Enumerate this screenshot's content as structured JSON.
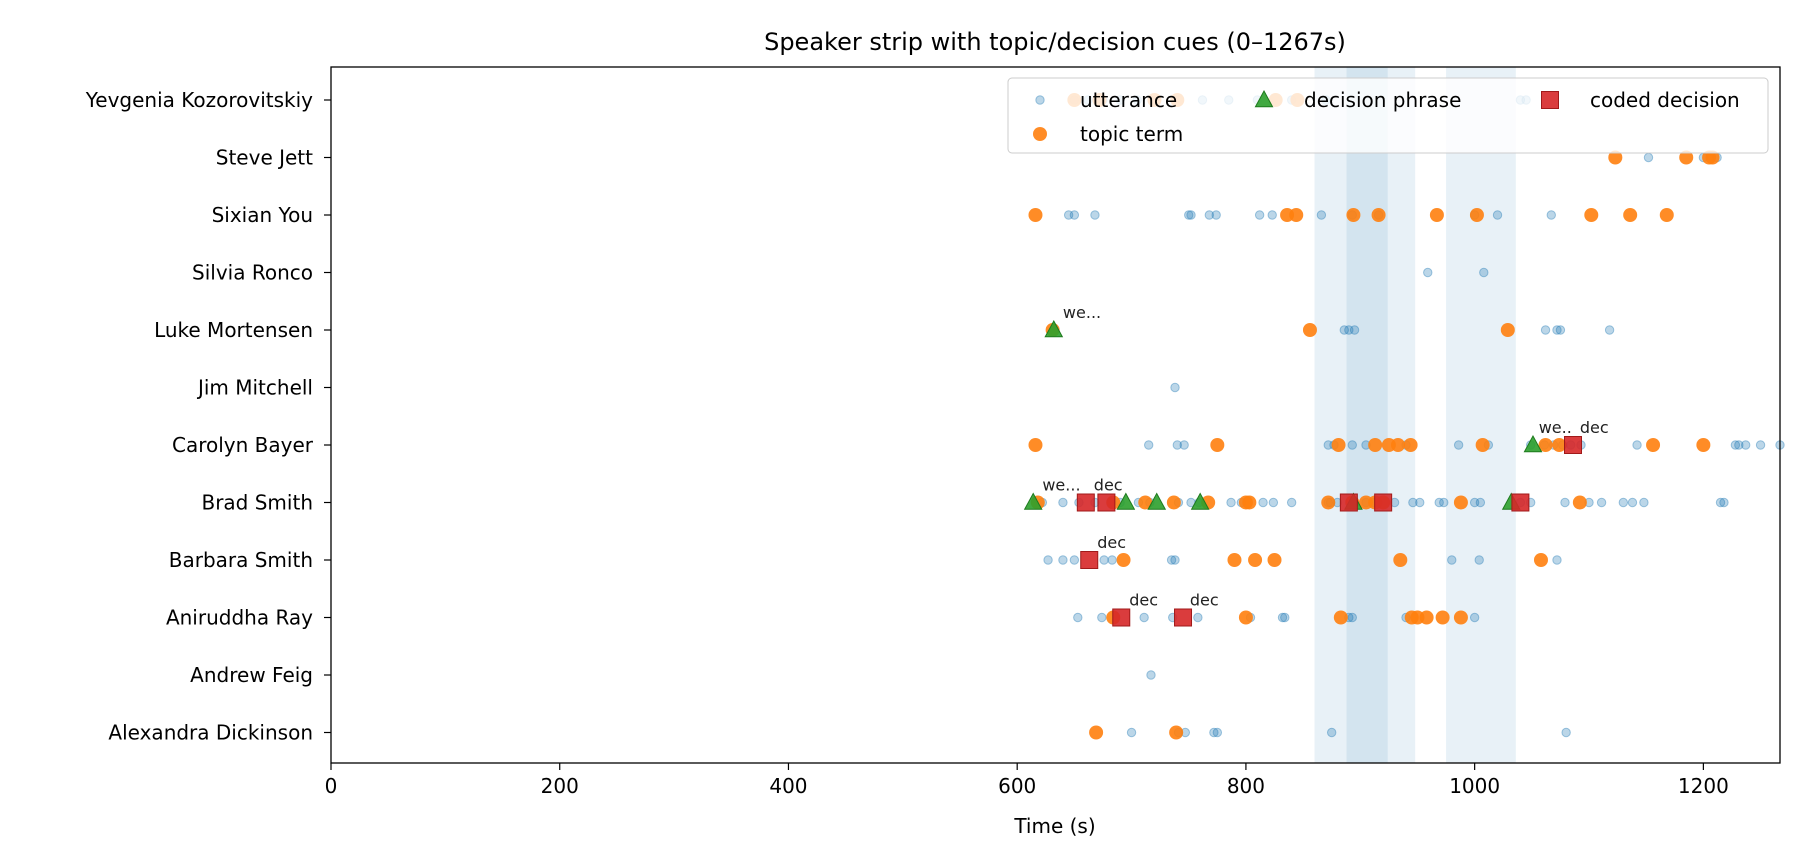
{
  "chart_data": {
    "type": "scatter",
    "title": "Speaker strip with topic/decision cues (0–1267s)",
    "xlabel": "Time (s)",
    "ylabel": "",
    "xlim": [
      0,
      1267
    ],
    "xticks": [
      0,
      200,
      400,
      600,
      800,
      1000,
      1200
    ],
    "grid": false,
    "legend_position": "top-right",
    "speakers": [
      "Yevgenia Kozorovitskiy",
      "Steve Jett",
      "Sixian You",
      "Silvia Ronco",
      "Luke Mortensen",
      "Jim Mitchell",
      "Carolyn Bayer",
      "Brad Smith",
      "Barbara Smith",
      "Aniruddha Ray",
      "Andrew Feig",
      "Alexandra Dickinson"
    ],
    "shaded_regions": [
      {
        "start": 860,
        "end": 948
      },
      {
        "start": 888,
        "end": 924
      },
      {
        "start": 975,
        "end": 1036
      }
    ],
    "colors": {
      "utterance": "#1f77b4",
      "topic": "#ff7f0e",
      "decision_phrase": "#2ca02c",
      "coded_decision": "#d62728",
      "shade": "#1f77b4"
    },
    "series": [
      {
        "name": "utterance",
        "marker": "circle-small",
        "points": [
          {
            "speaker": "Yevgenia Kozorovitskiy",
            "x": [
              650,
              662,
              675,
              690,
              705,
              720,
              738,
              762,
              785,
              810,
              840,
              870,
              1040,
              1045
            ]
          },
          {
            "speaker": "Steve Jett",
            "x": [
              1152,
              1200,
              1212
            ]
          },
          {
            "speaker": "Sixian You",
            "x": [
              645,
              650,
              668,
              750,
              752,
              768,
              774,
              812,
              823,
              866,
              893,
              916,
              1000,
              1020,
              1067
            ]
          },
          {
            "speaker": "Silvia Ronco",
            "x": [
              959,
              1008
            ]
          },
          {
            "speaker": "Luke Mortensen",
            "x": [
              886,
              890,
              895,
              1062,
              1072,
              1075,
              1118
            ]
          },
          {
            "speaker": "Jim Mitchell",
            "x": [
              738
            ]
          },
          {
            "speaker": "Carolyn Bayer",
            "x": [
              715,
              740,
              746,
              872,
              877,
              893,
              905,
              940,
              986,
              1012,
              1049,
              1061,
              1069,
              1077,
              1084,
              1093,
              1142,
              1228,
              1231,
              1237,
              1250,
              1267
            ]
          },
          {
            "speaker": "Brad Smith",
            "x": [
              622,
              640,
              654,
              668,
              690,
              706,
              716,
              741,
              752,
              759,
              787,
              796,
              815,
              824,
              840,
              872,
              874,
              880,
              895,
              905,
              912,
              930,
              946,
              952,
              969,
              973,
              1000,
              1005,
              1040,
              1049,
              1079,
              1100,
              1111,
              1130,
              1138,
              1148,
              1215,
              1218
            ]
          },
          {
            "speaker": "Barbara Smith",
            "x": [
              627,
              640,
              650,
              676,
              683,
              735,
              738,
              980,
              1004,
              1072
            ]
          },
          {
            "speaker": "Aniruddha Ray",
            "x": [
              653,
              674,
              711,
              736,
              758,
              804,
              832,
              834,
              890,
              893,
              940,
              1000
            ]
          },
          {
            "speaker": "Andrew Feig",
            "x": [
              717
            ]
          },
          {
            "speaker": "Alexandra Dickinson",
            "x": [
              700,
              741,
              747,
              772,
              775,
              875,
              1080
            ]
          }
        ]
      },
      {
        "name": "topic term",
        "marker": "circle",
        "points": [
          {
            "speaker": "Yevgenia Kozorovitskiy",
            "x": [
              650,
              672,
              720,
              740,
              826,
              845
            ]
          },
          {
            "speaker": "Steve Jett",
            "x": [
              1123,
              1185,
              1205,
              1208
            ]
          },
          {
            "speaker": "Sixian You",
            "x": [
              616,
              836,
              844,
              894,
              916,
              967,
              1002,
              1102,
              1136,
              1168
            ]
          },
          {
            "speaker": "Luke Mortensen",
            "x": [
              631,
              856,
              1029
            ]
          },
          {
            "speaker": "Carolyn Bayer",
            "x": [
              616,
              775,
              881,
              913,
              925,
              933,
              944,
              1007,
              1062,
              1074,
              1156,
              1200
            ]
          },
          {
            "speaker": "Brad Smith",
            "x": [
              618,
              684,
              712,
              737,
              767,
              800,
              803,
              872,
              893,
              905,
              913,
              920,
              988,
              1092
            ]
          },
          {
            "speaker": "Barbara Smith",
            "x": [
              693,
              790,
              808,
              825,
              935,
              1058
            ]
          },
          {
            "speaker": "Aniruddha Ray",
            "x": [
              684,
              800,
              883,
              945,
              950,
              958,
              972,
              988
            ]
          },
          {
            "speaker": "Alexandra Dickinson",
            "x": [
              669,
              739
            ]
          }
        ]
      },
      {
        "name": "decision phrase",
        "marker": "triangle",
        "points": [
          {
            "speaker": "Luke Mortensen",
            "x": [
              632
            ]
          },
          {
            "speaker": "Carolyn Bayer",
            "x": [
              1051
            ]
          },
          {
            "speaker": "Brad Smith",
            "x": [
              614,
              695,
              722,
              760,
              894,
              1032
            ]
          }
        ]
      },
      {
        "name": "coded decision",
        "marker": "square",
        "points": [
          {
            "speaker": "Carolyn Bayer",
            "x": [
              1086
            ]
          },
          {
            "speaker": "Brad Smith",
            "x": [
              660,
              678,
              890,
              920,
              1040
            ]
          },
          {
            "speaker": "Barbara Smith",
            "x": [
              663
            ]
          },
          {
            "speaker": "Aniruddha Ray",
            "x": [
              691,
              745
            ]
          }
        ]
      }
    ],
    "annotations": [
      {
        "speaker": "Luke Mortensen",
        "x": 640,
        "text": "we..."
      },
      {
        "speaker": "Carolyn Bayer",
        "x": 1056,
        "text": "we.."
      },
      {
        "speaker": "Carolyn Bayer",
        "x": 1092,
        "text": "dec"
      },
      {
        "speaker": "Brad Smith",
        "x": 622,
        "text": "we..."
      },
      {
        "speaker": "Brad Smith",
        "x": 667,
        "text": "dec"
      },
      {
        "speaker": "Barbara Smith",
        "x": 670,
        "text": "dec"
      },
      {
        "speaker": "Aniruddha Ray",
        "x": 698,
        "text": "dec"
      },
      {
        "speaker": "Aniruddha Ray",
        "x": 751,
        "text": "dec"
      }
    ],
    "legend": [
      "utterance",
      "decision phrase",
      "coded decision",
      "topic term"
    ]
  }
}
